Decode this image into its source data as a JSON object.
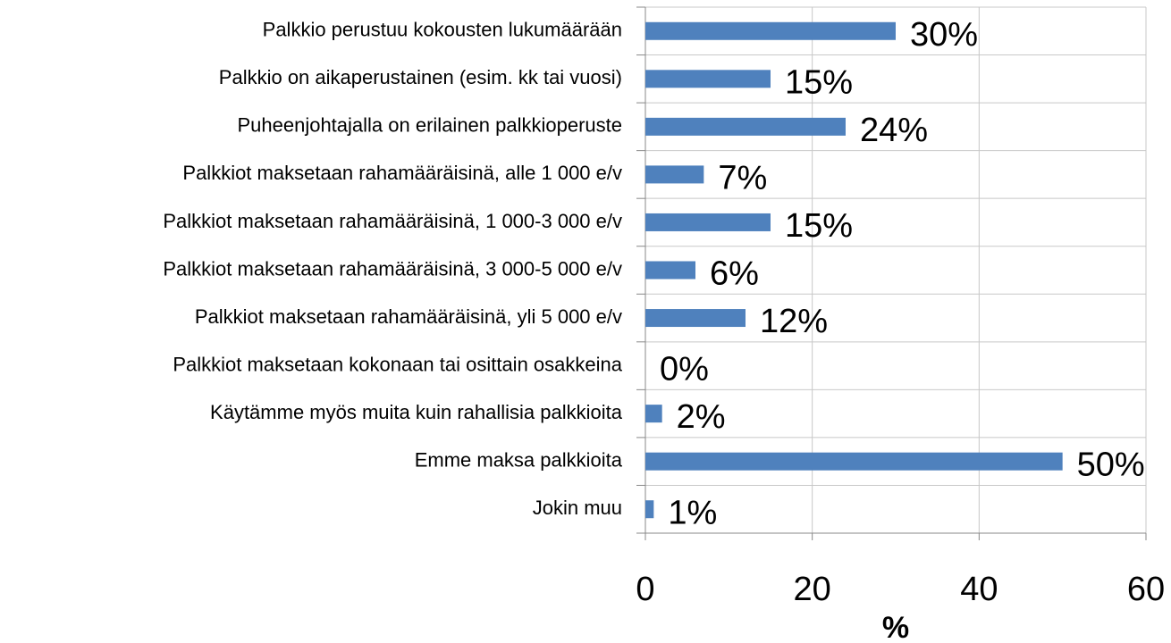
{
  "chart_data": {
    "type": "hbar",
    "categories": [
      "Palkkio perustuu kokousten lukumäärään",
      "Palkkio on aikaperustainen (esim. kk tai vuosi)",
      "Puheenjohtajalla on erilainen palkkioperuste",
      "Palkkiot maksetaan rahamääräisinä, alle 1 000 e/v",
      "Palkkiot maksetaan rahamääräisinä, 1 000-3 000 e/v",
      "Palkkiot maksetaan rahamääräisinä, 3 000-5 000 e/v",
      "Palkkiot maksetaan rahamääräisinä, yli 5 000 e/v",
      "Palkkiot maksetaan kokonaan tai osittain osakkeina",
      "Käytämme myös muita kuin rahallisia palkkioita",
      "Emme maksa palkkioita",
      "Jokin muu"
    ],
    "values": [
      30,
      15,
      24,
      7,
      15,
      6,
      12,
      0,
      2,
      50,
      1
    ],
    "value_labels": [
      "30%",
      "15%",
      "24%",
      "7%",
      "15%",
      "6%",
      "12%",
      "0%",
      "2%",
      "50%",
      "1%"
    ],
    "color": "#4f81bd",
    "xlim": [
      0,
      60
    ],
    "xticks": [
      0,
      20,
      40,
      60
    ],
    "x_label": "%",
    "grid": true
  }
}
